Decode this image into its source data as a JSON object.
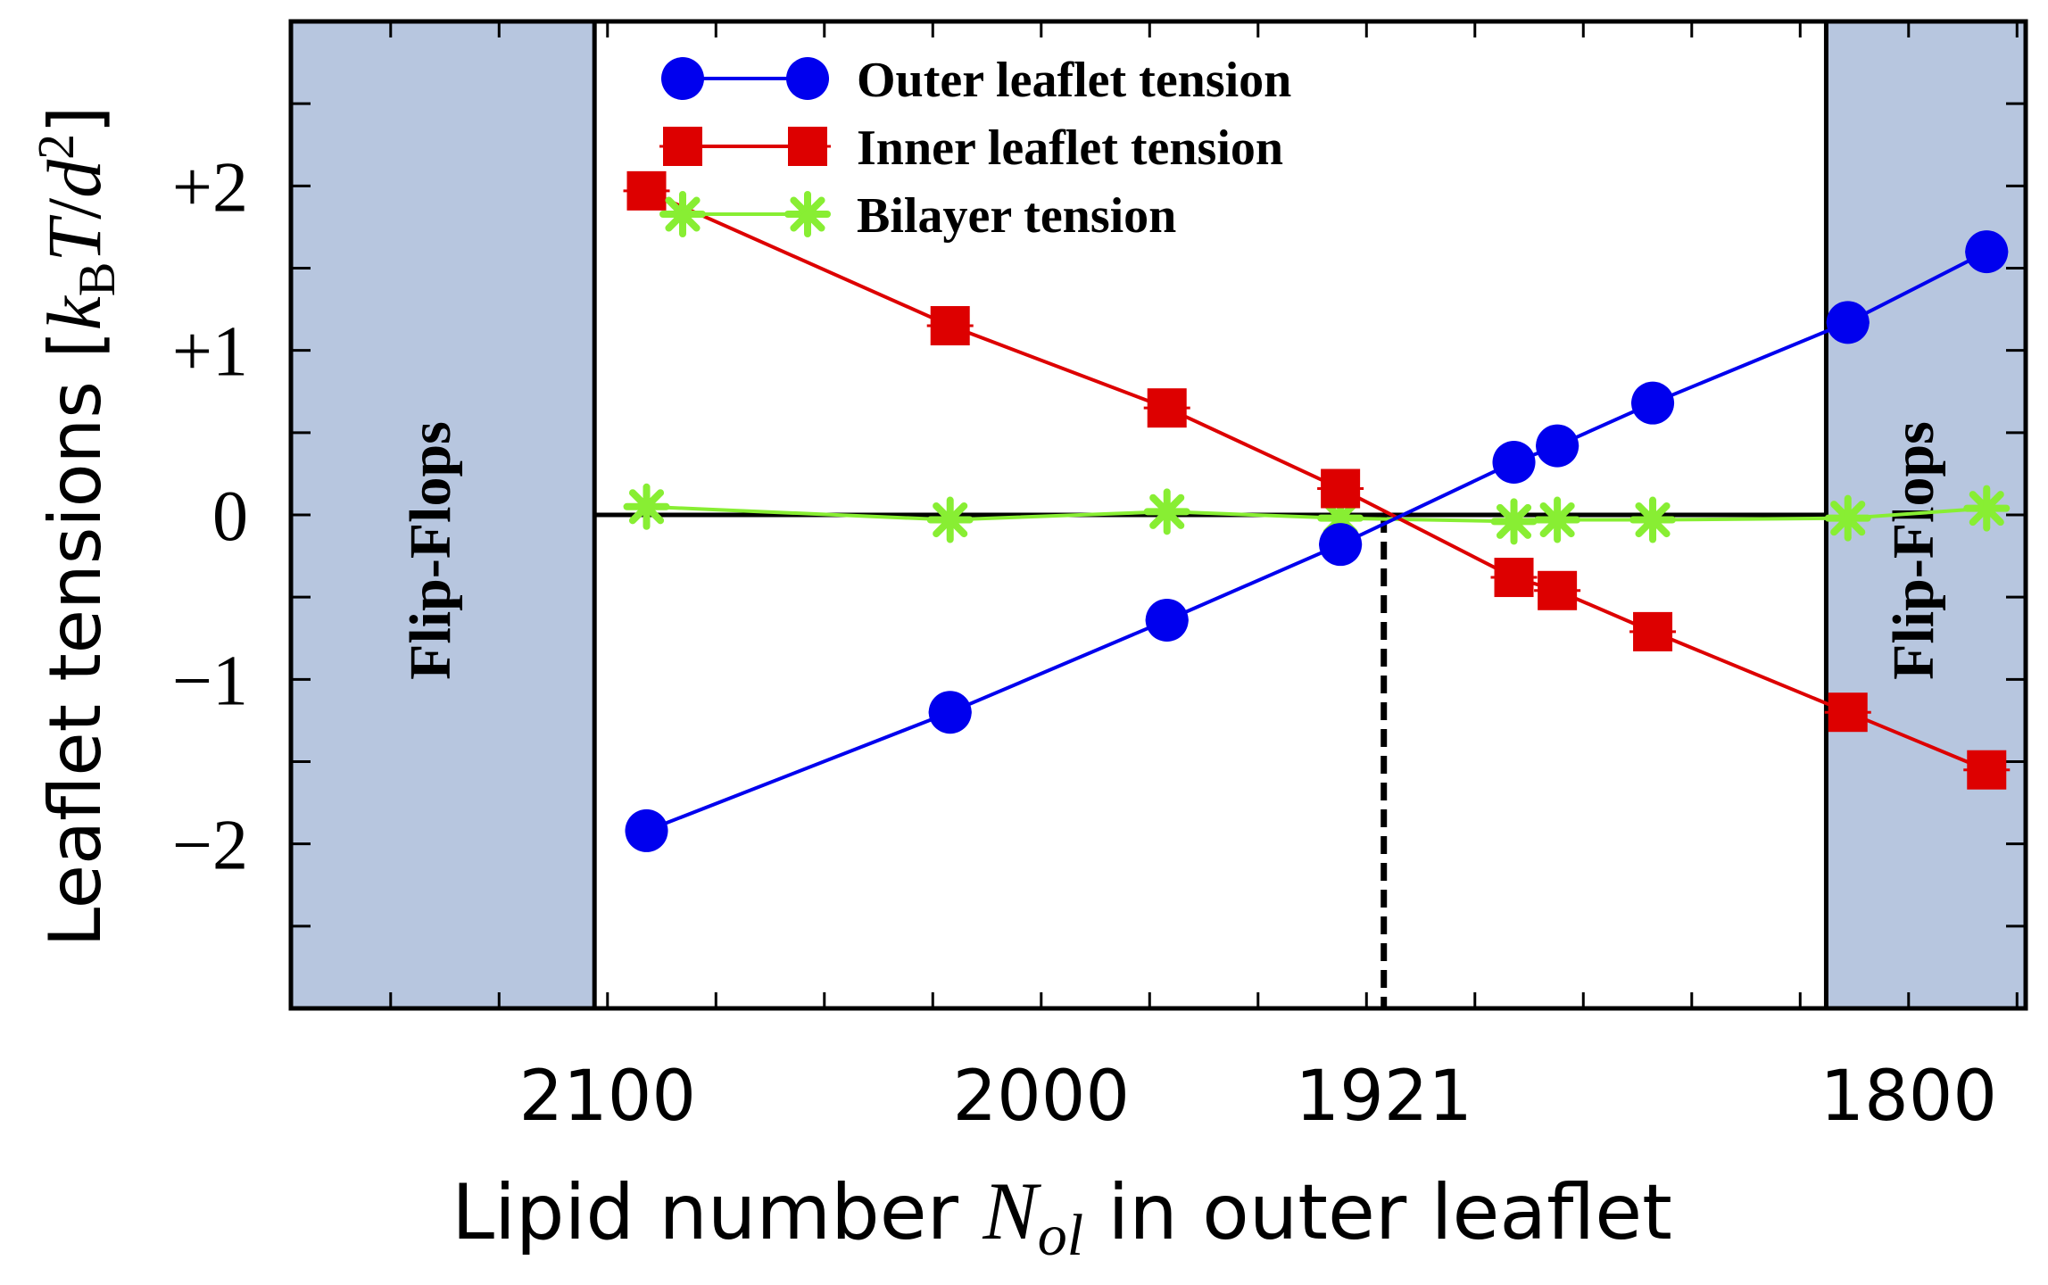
{
  "chart_data": {
    "type": "line",
    "title": "",
    "xlabel": {
      "prefix": "Lipid number ",
      "symbol": "N",
      "subscript": "ol",
      "suffix": " in outer leaflet"
    },
    "ylabel": {
      "prefix": "Leaflet tensions  [",
      "k": "k",
      "k_sub": "B",
      "T": "T",
      "slash": "/",
      "d": "d",
      "d_sup": "2",
      "suffix": "]"
    },
    "xlim": [
      2173,
      1773
    ],
    "ylim": [
      -3,
      3
    ],
    "x_ticks": [
      {
        "value": 2100,
        "label": "2100"
      },
      {
        "value": 2000,
        "label": "2000"
      },
      {
        "value": 1921,
        "label": "1921"
      },
      {
        "value": 1800,
        "label": "1800"
      }
    ],
    "y_ticks": [
      {
        "value": 2,
        "label": "+2"
      },
      {
        "value": 1,
        "label": "+1"
      },
      {
        "value": 0,
        "label": "0"
      },
      {
        "value": -1,
        "label": "−1"
      },
      {
        "value": -2,
        "label": "−2"
      }
    ],
    "shaded_regions": [
      {
        "from": 2173,
        "to": 2103,
        "label": "Flip-Flops"
      },
      {
        "from": 1819,
        "to": 1773,
        "label": "Flip-Flops"
      }
    ],
    "reference_line_x": 1921,
    "series": [
      {
        "name": "Outer leaflet tension",
        "color": "#0000ee",
        "marker": "circle",
        "x": [
          2091,
          2021,
          1971,
          1931,
          1891,
          1881,
          1859,
          1814,
          1782
        ],
        "y": [
          -1.92,
          -1.2,
          -0.64,
          -0.18,
          0.32,
          0.42,
          0.68,
          1.17,
          1.6
        ]
      },
      {
        "name": "Inner leaflet tension",
        "color": "#dd0000",
        "marker": "square",
        "x": [
          2091,
          2021,
          1971,
          1931,
          1891,
          1881,
          1859,
          1814,
          1782
        ],
        "y": [
          1.97,
          1.15,
          0.65,
          0.16,
          -0.38,
          -0.46,
          -0.71,
          -1.2,
          -1.55
        ]
      },
      {
        "name": "Bilayer tension",
        "color": "#88ee33",
        "marker": "star",
        "x": [
          2091,
          2021,
          1971,
          1931,
          1891,
          1881,
          1859,
          1814,
          1782
        ],
        "y": [
          0.05,
          -0.03,
          0.02,
          -0.02,
          -0.04,
          -0.03,
          -0.03,
          -0.02,
          0.04
        ]
      }
    ],
    "legend": {
      "position": "top-center"
    }
  }
}
